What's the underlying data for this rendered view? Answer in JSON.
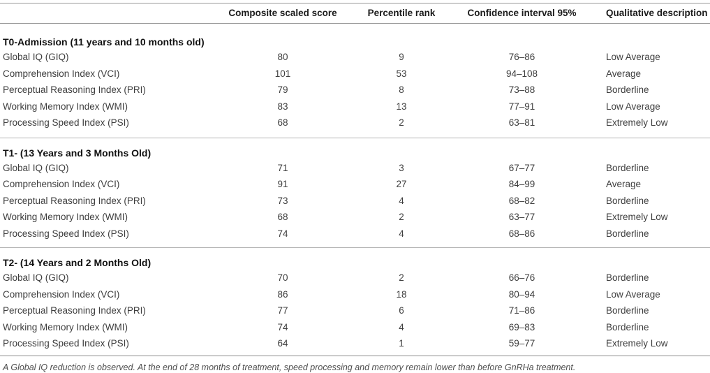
{
  "table": {
    "columns": [
      "",
      "Composite scaled score",
      "Percentile rank",
      "Confidence interval 95%",
      "Qualitative description"
    ],
    "sections": [
      {
        "header": "T0-Admission (11 years and 10 months old)",
        "rows": [
          {
            "label": "Global IQ (GIQ)",
            "composite_scaled_score": "80",
            "percentile_rank": "9",
            "confidence_interval_95": "76–86",
            "qualitative_description": "Low Average"
          },
          {
            "label": "Comprehension Index (VCI)",
            "composite_scaled_score": "101",
            "percentile_rank": "53",
            "confidence_interval_95": "94–108",
            "qualitative_description": "Average"
          },
          {
            "label": "Perceptual Reasoning Index (PRI)",
            "composite_scaled_score": "79",
            "percentile_rank": "8",
            "confidence_interval_95": "73–88",
            "qualitative_description": "Borderline"
          },
          {
            "label": "Working Memory Index (WMI)",
            "composite_scaled_score": "83",
            "percentile_rank": "13",
            "confidence_interval_95": "77–91",
            "qualitative_description": "Low Average"
          },
          {
            "label": "Processing Speed Index (PSI)",
            "composite_scaled_score": "68",
            "percentile_rank": "2",
            "confidence_interval_95": "63–81",
            "qualitative_description": "Extremely Low"
          }
        ]
      },
      {
        "header": "T1- (13 Years and 3 Months Old)",
        "rows": [
          {
            "label": "Global IQ (GIQ)",
            "composite_scaled_score": "71",
            "percentile_rank": "3",
            "confidence_interval_95": "67–77",
            "qualitative_description": "Borderline"
          },
          {
            "label": "Comprehension Index (VCI)",
            "composite_scaled_score": "91",
            "percentile_rank": "27",
            "confidence_interval_95": "84–99",
            "qualitative_description": "Average"
          },
          {
            "label": "Perceptual Reasoning Index (PRI)",
            "composite_scaled_score": "73",
            "percentile_rank": "4",
            "confidence_interval_95": "68–82",
            "qualitative_description": "Borderline"
          },
          {
            "label": "Working Memory Index (WMI)",
            "composite_scaled_score": "68",
            "percentile_rank": "2",
            "confidence_interval_95": "63–77",
            "qualitative_description": "Extremely Low"
          },
          {
            "label": "Processing Speed Index (PSI)",
            "composite_scaled_score": "74",
            "percentile_rank": "4",
            "confidence_interval_95": "68–86",
            "qualitative_description": "Borderline"
          }
        ]
      },
      {
        "header": "T2- (14 Years and 2 Months Old)",
        "rows": [
          {
            "label": "Global IQ (GIQ)",
            "composite_scaled_score": "70",
            "percentile_rank": "2",
            "confidence_interval_95": "66–76",
            "qualitative_description": "Borderline"
          },
          {
            "label": "Comprehension Index (VCI)",
            "composite_scaled_score": "86",
            "percentile_rank": "18",
            "confidence_interval_95": "80–94",
            "qualitative_description": "Low Average"
          },
          {
            "label": "Perceptual Reasoning Index (PRI)",
            "composite_scaled_score": "77",
            "percentile_rank": "6",
            "confidence_interval_95": "71–86",
            "qualitative_description": "Borderline"
          },
          {
            "label": "Working Memory Index (WMI)",
            "composite_scaled_score": "74",
            "percentile_rank": "4",
            "confidence_interval_95": "69–83",
            "qualitative_description": "Borderline"
          },
          {
            "label": "Processing Speed Index (PSI)",
            "composite_scaled_score": "64",
            "percentile_rank": "1",
            "confidence_interval_95": "59–77",
            "qualitative_description": "Extremely Low"
          }
        ]
      }
    ]
  },
  "footnote": "A Global IQ reduction is observed. At the end of 28 months of treatment, speed processing and memory remain lower than before GnRHa treatment.",
  "colors": {
    "text_body": "#3e3e3e",
    "text_bold": "#1b1b1b",
    "rule_dark": "#999999",
    "rule_light": "#b3b3b3",
    "rule_bottom": "#8a8a8a",
    "footnote_text": "#4d4d4d",
    "background": "#ffffff"
  }
}
